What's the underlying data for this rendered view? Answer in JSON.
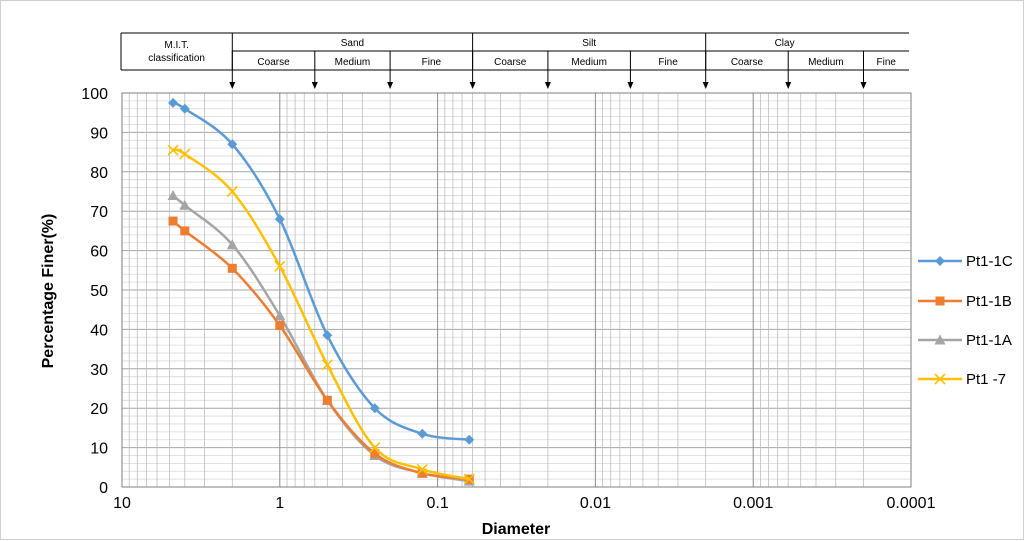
{
  "chart_data": {
    "type": "scatter",
    "xlabel": "Diameter",
    "ylabel": "Percentage Finer(%)",
    "x_scale": "log",
    "x_reversed": true,
    "xlim": [
      10,
      0.0001
    ],
    "ylim": [
      0,
      100
    ],
    "x_ticks": [
      "10",
      "1",
      "0.1",
      "0.01",
      "0.001",
      "0.0001"
    ],
    "y_ticks": [
      "0",
      "10",
      "20",
      "30",
      "40",
      "50",
      "60",
      "70",
      "80",
      "90",
      "100"
    ],
    "grid": true,
    "legend_position": "right",
    "series": [
      {
        "name": "Pt1-1C",
        "color": "#5b9bd5",
        "marker": "diamond",
        "x": [
          4.75,
          4.0,
          2.0,
          1.0,
          0.5,
          0.25,
          0.125,
          0.063
        ],
        "y": [
          97.5,
          96,
          87,
          68,
          38.5,
          20,
          13.5,
          12
        ]
      },
      {
        "name": "Pt1-1B",
        "color": "#ed7d31",
        "marker": "square",
        "x": [
          4.75,
          4.0,
          2.0,
          1.0,
          0.5,
          0.25,
          0.125,
          0.063
        ],
        "y": [
          67.5,
          65,
          55.5,
          41,
          22,
          8.5,
          3.5,
          2
        ]
      },
      {
        "name": "Pt1-1A",
        "color": "#a5a5a5",
        "marker": "triangle",
        "x": [
          4.75,
          4.0,
          2.0,
          1.0,
          0.5,
          0.25,
          0.125,
          0.063
        ],
        "y": [
          74,
          71.5,
          61.5,
          43.5,
          22,
          8,
          3.5,
          1.5
        ]
      },
      {
        "name": "Pt1 -7",
        "color": "#ffc000",
        "marker": "x",
        "x": [
          4.75,
          4.0,
          2.0,
          1.0,
          0.5,
          0.25,
          0.125,
          0.063
        ],
        "y": [
          85.5,
          84.5,
          75,
          56,
          31,
          10,
          4.5,
          2
        ]
      }
    ]
  },
  "classification": {
    "header": "M.I.T.\nclassification",
    "groups": [
      {
        "label": "Sand",
        "from": 2,
        "to": 0.06,
        "subs": [
          {
            "label": "Coarse",
            "from": 2,
            "to": 0.6
          },
          {
            "label": "Medium",
            "from": 0.6,
            "to": 0.2
          },
          {
            "label": "Fine",
            "from": 0.2,
            "to": 0.06
          }
        ]
      },
      {
        "label": "Silt",
        "from": 0.06,
        "to": 0.002,
        "subs": [
          {
            "label": "Coarse",
            "from": 0.06,
            "to": 0.02
          },
          {
            "label": "Medium",
            "from": 0.02,
            "to": 0.006
          },
          {
            "label": "Fine",
            "from": 0.006,
            "to": 0.002
          }
        ]
      },
      {
        "label": "Clay",
        "from": 0.002,
        "to": 0.0002,
        "subs": [
          {
            "label": "Coarse",
            "from": 0.002,
            "to": 0.0006
          },
          {
            "label": "Medium",
            "from": 0.0006,
            "to": 0.0002
          },
          {
            "label": "Fine",
            "from": 0.0002,
            "to": 0.0001
          }
        ]
      }
    ],
    "arrows_at": [
      2,
      0.6,
      0.2,
      0.06,
      0.02,
      0.006,
      0.002,
      0.0006,
      0.0002
    ]
  }
}
